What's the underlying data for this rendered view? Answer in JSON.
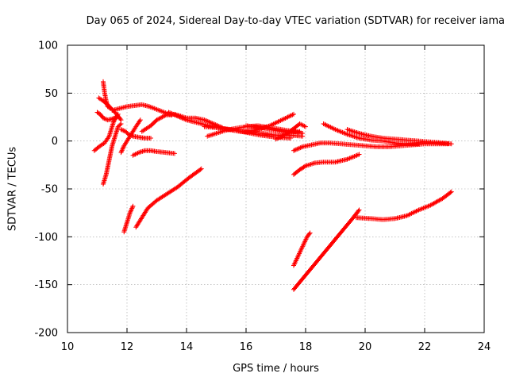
{
  "chart_data": {
    "type": "scatter",
    "title": "Day 065 of 2024, Sidereal Day-to-day VTEC variation (SDTVAR) for receiver iama",
    "xlabel": "GPS time / hours",
    "ylabel": "SDTVAR / TECUs",
    "xlim": [
      10,
      24
    ],
    "ylim": [
      -200,
      100
    ],
    "xticks": [
      10,
      12,
      14,
      16,
      18,
      20,
      22,
      24
    ],
    "yticks": [
      -200,
      -150,
      -100,
      -50,
      0,
      50,
      100
    ],
    "xtick_labels": [
      "10",
      "12",
      "14",
      "16",
      "18",
      "20",
      "22",
      "24"
    ],
    "ytick_labels": [
      "-200",
      "-150",
      "-100",
      "-50",
      "0",
      "50",
      "100"
    ],
    "grid": true,
    "marker": "plus",
    "color": "#ff0000",
    "series": [
      {
        "points": [
          [
            10.9,
            -10
          ],
          [
            11.1,
            -5
          ],
          [
            11.25,
            -2
          ],
          [
            11.4,
            5
          ],
          [
            11.55,
            20
          ],
          [
            11.7,
            28
          ]
        ]
      },
      {
        "points": [
          [
            11.05,
            45
          ],
          [
            11.2,
            42
          ],
          [
            11.35,
            38
          ],
          [
            11.5,
            33
          ],
          [
            11.65,
            28
          ],
          [
            11.8,
            22
          ]
        ]
      },
      {
        "points": [
          [
            11.0,
            30
          ],
          [
            11.1,
            28
          ],
          [
            11.2,
            24
          ],
          [
            11.35,
            22
          ],
          [
            11.5,
            23
          ],
          [
            11.65,
            25
          ]
        ]
      },
      {
        "points": [
          [
            11.2,
            62
          ],
          [
            11.25,
            50
          ],
          [
            11.3,
            42
          ],
          [
            11.35,
            36
          ],
          [
            11.45,
            34
          ]
        ]
      },
      {
        "points": [
          [
            11.2,
            -45
          ],
          [
            11.3,
            -35
          ],
          [
            11.4,
            -20
          ],
          [
            11.5,
            -5
          ],
          [
            11.6,
            5
          ],
          [
            11.7,
            15
          ],
          [
            11.8,
            18
          ]
        ]
      },
      {
        "points": [
          [
            11.8,
            -12
          ],
          [
            11.9,
            -5
          ],
          [
            12.0,
            0
          ],
          [
            12.1,
            5
          ],
          [
            12.2,
            10
          ],
          [
            12.3,
            15
          ],
          [
            12.45,
            22
          ]
        ]
      },
      {
        "points": [
          [
            11.5,
            32
          ],
          [
            11.75,
            34
          ],
          [
            12.0,
            36
          ],
          [
            12.25,
            37
          ],
          [
            12.5,
            38
          ],
          [
            12.75,
            36
          ],
          [
            13.0,
            33
          ],
          [
            13.25,
            30
          ],
          [
            13.5,
            27
          ]
        ]
      },
      {
        "points": [
          [
            11.8,
            12
          ],
          [
            11.95,
            10
          ],
          [
            12.05,
            7
          ],
          [
            12.2,
            5
          ],
          [
            12.4,
            4
          ],
          [
            12.6,
            3
          ],
          [
            12.8,
            3
          ]
        ]
      },
      {
        "points": [
          [
            12.2,
            -15
          ],
          [
            12.4,
            -12
          ],
          [
            12.6,
            -10
          ],
          [
            12.8,
            -10
          ],
          [
            13.0,
            -11
          ],
          [
            13.3,
            -12
          ],
          [
            13.6,
            -13
          ]
        ]
      },
      {
        "points": [
          [
            12.5,
            10
          ],
          [
            12.8,
            16
          ],
          [
            13.0,
            22
          ],
          [
            13.3,
            27
          ],
          [
            13.6,
            28
          ],
          [
            13.8,
            26
          ],
          [
            14.0,
            24
          ],
          [
            14.3,
            24
          ],
          [
            14.6,
            22
          ],
          [
            14.9,
            18
          ],
          [
            15.2,
            14
          ]
        ]
      },
      {
        "points": [
          [
            13.4,
            30
          ],
          [
            13.7,
            26
          ],
          [
            14.0,
            22
          ],
          [
            14.5,
            18
          ],
          [
            15.0,
            14
          ],
          [
            15.5,
            12
          ],
          [
            16.0,
            9
          ],
          [
            16.5,
            6
          ],
          [
            17.0,
            4
          ],
          [
            17.5,
            3
          ]
        ]
      },
      {
        "points": [
          [
            14.6,
            15
          ],
          [
            15.0,
            14
          ],
          [
            15.4,
            12
          ],
          [
            15.8,
            10
          ],
          [
            16.2,
            9
          ],
          [
            16.6,
            8
          ],
          [
            17.0,
            6
          ],
          [
            17.5,
            6
          ],
          [
            17.9,
            5
          ]
        ]
      },
      {
        "points": [
          [
            14.7,
            5
          ],
          [
            15.0,
            8
          ],
          [
            15.3,
            11
          ],
          [
            15.6,
            13
          ],
          [
            16.0,
            15
          ],
          [
            16.4,
            16
          ],
          [
            16.8,
            14
          ],
          [
            17.2,
            12
          ],
          [
            17.6,
            10
          ],
          [
            17.9,
            8
          ]
        ]
      },
      {
        "points": [
          [
            16.0,
            10
          ],
          [
            16.4,
            12
          ],
          [
            16.8,
            16
          ],
          [
            17.2,
            22
          ],
          [
            17.6,
            28
          ]
        ]
      },
      {
        "points": [
          [
            16.0,
            16
          ],
          [
            16.5,
            14
          ],
          [
            17.0,
            11
          ],
          [
            17.4,
            9
          ],
          [
            17.8,
            10
          ]
        ]
      },
      {
        "points": [
          [
            17.0,
            2
          ],
          [
            17.3,
            6
          ],
          [
            17.6,
            13
          ],
          [
            17.8,
            18
          ],
          [
            18.0,
            15
          ]
        ]
      },
      {
        "points": [
          [
            11.9,
            -95
          ],
          [
            12.0,
            -85
          ],
          [
            12.1,
            -75
          ],
          [
            12.2,
            -68
          ]
        ]
      },
      {
        "points": [
          [
            12.3,
            -90
          ],
          [
            12.5,
            -80
          ],
          [
            12.7,
            -70
          ],
          [
            13.0,
            -62
          ],
          [
            13.3,
            -56
          ],
          [
            13.7,
            -48
          ],
          [
            14.1,
            -38
          ],
          [
            14.5,
            -29
          ]
        ]
      },
      {
        "points": [
          [
            17.6,
            -35
          ],
          [
            17.8,
            -30
          ],
          [
            18.0,
            -26
          ],
          [
            18.3,
            -23
          ],
          [
            18.6,
            -22
          ],
          [
            19.0,
            -22
          ],
          [
            19.4,
            -19
          ],
          [
            19.8,
            -14
          ]
        ]
      },
      {
        "points": [
          [
            17.6,
            -10
          ],
          [
            17.9,
            -6
          ],
          [
            18.2,
            -4
          ],
          [
            18.5,
            -2
          ],
          [
            18.8,
            -2
          ],
          [
            19.2,
            -3
          ],
          [
            19.6,
            -4
          ],
          [
            20.0,
            -5
          ],
          [
            20.4,
            -6
          ],
          [
            20.8,
            -6
          ],
          [
            21.2,
            -5
          ],
          [
            21.6,
            -4
          ],
          [
            22.0,
            -3
          ],
          [
            22.4,
            -3
          ],
          [
            22.8,
            -3
          ]
        ]
      },
      {
        "points": [
          [
            18.6,
            18
          ],
          [
            19.0,
            12
          ],
          [
            19.4,
            7
          ],
          [
            19.8,
            3
          ],
          [
            20.2,
            1
          ],
          [
            20.6,
            0
          ],
          [
            21.0,
            -2
          ],
          [
            21.4,
            -3
          ],
          [
            21.8,
            -3
          ]
        ]
      },
      {
        "points": [
          [
            19.4,
            12
          ],
          [
            19.8,
            8
          ],
          [
            20.2,
            5
          ],
          [
            20.6,
            3
          ],
          [
            21.0,
            2
          ],
          [
            21.4,
            1
          ],
          [
            21.8,
            0
          ],
          [
            22.2,
            -1
          ],
          [
            22.6,
            -2
          ],
          [
            22.9,
            -3
          ]
        ]
      },
      {
        "points": [
          [
            17.6,
            -130
          ],
          [
            17.75,
            -120
          ],
          [
            17.9,
            -110
          ],
          [
            18.05,
            -100
          ],
          [
            18.15,
            -96
          ]
        ]
      },
      {
        "points": [
          [
            17.6,
            -155
          ],
          [
            18.0,
            -140
          ],
          [
            18.4,
            -125
          ],
          [
            18.8,
            -110
          ],
          [
            19.2,
            -95
          ],
          [
            19.6,
            -80
          ],
          [
            19.8,
            -72
          ]
        ]
      },
      {
        "points": [
          [
            19.7,
            -80
          ],
          [
            20.2,
            -81
          ],
          [
            20.6,
            -82
          ],
          [
            21.0,
            -81
          ],
          [
            21.4,
            -78
          ],
          [
            21.8,
            -72
          ],
          [
            22.2,
            -67
          ],
          [
            22.6,
            -60
          ],
          [
            22.9,
            -53
          ]
        ]
      }
    ]
  }
}
